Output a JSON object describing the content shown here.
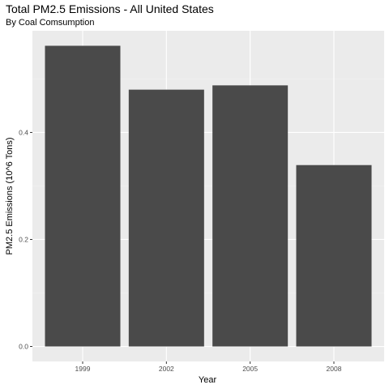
{
  "chart_data": {
    "type": "bar",
    "title": "Total PM2.5 Emissions - All United States",
    "subtitle": "By Coal Comsumption",
    "xlabel": "Year",
    "ylabel": "PM2.5 Emissions (10^6 Tons)",
    "categories": [
      "1999",
      "2002",
      "2005",
      "2008"
    ],
    "values": [
      0.562,
      0.48,
      0.488,
      0.339
    ],
    "ylim": [
      -0.028,
      0.59
    ],
    "yticks": [
      0.0,
      0.2,
      0.4
    ],
    "ytick_labels": [
      "0.0",
      "0.2",
      "0.4"
    ],
    "grid": true,
    "colors": {
      "panel": "#ebebeb",
      "grid_major": "#ffffff",
      "bar": "#4a4a4a",
      "tick_text": "#4d4d4d",
      "tick_mark": "#333333"
    }
  }
}
